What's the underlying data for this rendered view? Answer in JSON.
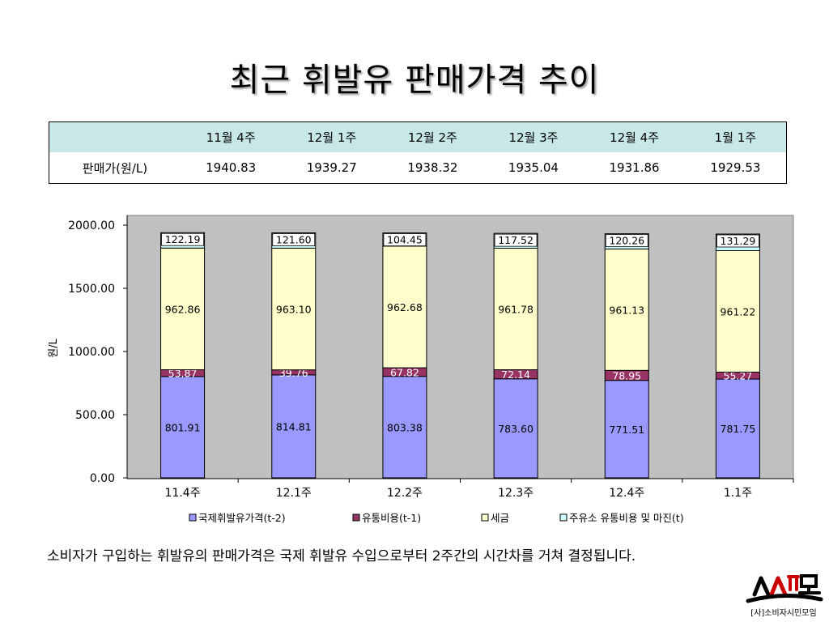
{
  "title": "최근 휘발유 판매가격 추이",
  "table": {
    "header_empty": "",
    "row_label": "판매가(원/L)",
    "columns": [
      "11월 4주",
      "12월 1주",
      "12월 2주",
      "12월 3주",
      "12월 4주",
      "1월 1주"
    ],
    "values": [
      "1940.83",
      "1939.27",
      "1938.32",
      "1935.04",
      "1931.86",
      "1929.53"
    ]
  },
  "chart_data": {
    "type": "bar",
    "stacked": true,
    "categories": [
      "11.4주",
      "12.1주",
      "12.2주",
      "12.3주",
      "12.4주",
      "1.1주"
    ],
    "ylabel": "원/L",
    "ylim": [
      0,
      2000
    ],
    "yticks": [
      "0.00",
      "500.00",
      "1000.00",
      "1500.00",
      "2000.00"
    ],
    "legend_position": "bottom",
    "grid": false,
    "series": [
      {
        "name": "국제휘발유가격(t-2)",
        "color": "#9999ff",
        "label_color": "#000000",
        "values": [
          801.91,
          814.81,
          803.38,
          783.6,
          771.51,
          781.75
        ],
        "labels": [
          "801.91",
          "814.81",
          "803.38",
          "783.60",
          "771.51",
          "781.75"
        ]
      },
      {
        "name": "유통비용(t-1)",
        "color": "#993366",
        "label_color": "#ffffff",
        "values": [
          53.87,
          39.76,
          67.82,
          72.14,
          78.95,
          55.27
        ],
        "labels": [
          "53.87",
          "39.76",
          "67.82",
          "72.14",
          "78.95",
          "55.27"
        ]
      },
      {
        "name": "세금",
        "color": "#ffffcc",
        "label_color": "#000000",
        "values": [
          962.86,
          963.1,
          962.68,
          961.78,
          961.13,
          961.22
        ],
        "labels": [
          "962.86",
          "963.10",
          "962.68",
          "961.78",
          "961.13",
          "961.22"
        ]
      },
      {
        "name": "주유소 유통비용 및 마진(t)",
        "color": "#ccffff",
        "label_color": "#000000",
        "values": [
          122.19,
          121.6,
          104.45,
          117.52,
          120.26,
          131.29
        ],
        "labels": [
          "122.19",
          "121.60",
          "104.45",
          "117.52",
          "120.26",
          "131.29"
        ]
      }
    ]
  },
  "caption": "소비자가 구입하는 휘발유의 판매가격은 국제 휘발유 수입으로부터 2주간의 시간차를 거쳐 결정됩니다.",
  "logo": {
    "main": "소시모",
    "sub": "[사]소비자시민모임",
    "color": "#cc0000"
  }
}
